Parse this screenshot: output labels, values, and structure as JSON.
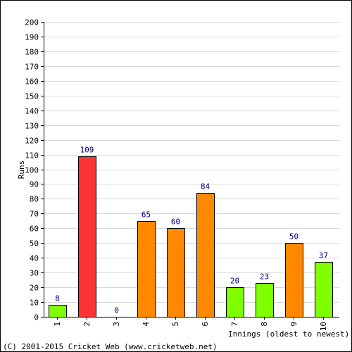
{
  "chart_data": {
    "type": "bar",
    "categories": [
      "1",
      "2",
      "3",
      "4",
      "5",
      "6",
      "7",
      "8",
      "9",
      "10"
    ],
    "values": [
      8,
      109,
      0,
      65,
      60,
      84,
      20,
      23,
      50,
      37
    ],
    "bar_colors": [
      "#80ff00",
      "#ff3333",
      "#ff8800",
      "#ff8800",
      "#ff8800",
      "#ff8800",
      "#80ff00",
      "#80ff00",
      "#ff8800",
      "#80ff00"
    ],
    "data_labels": [
      "8",
      "109",
      "0",
      "65",
      "60",
      "84",
      "20",
      "23",
      "50",
      "37"
    ],
    "ylim": [
      0,
      200
    ],
    "ytick_step": 10,
    "ylabel": "Runs",
    "xlabel": "Innings (oldest to newest)",
    "grid": true,
    "colors": {
      "grid": "#d9d9d9",
      "axis": "#000000",
      "label_text": "#000080",
      "bar_stroke": "#000000"
    }
  },
  "footer": {
    "copyright": "(C) 2001-2015 Cricket Web (www.cricketweb.net)"
  }
}
